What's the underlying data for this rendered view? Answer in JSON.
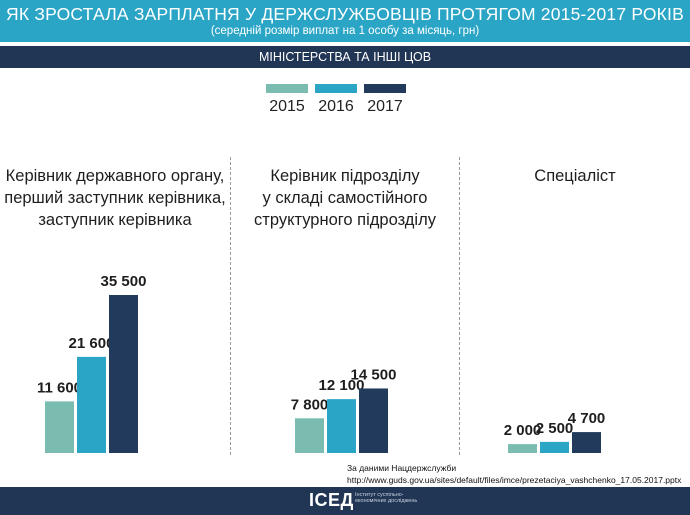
{
  "header": {
    "title": "ЯК ЗРОСТАЛА ЗАРПЛАТНЯ У ДЕРЖСЛУЖБОВЦІВ ПРОТЯГОМ 2015-2017 РОКІВ",
    "subtitle": "(середній розмір виплат на 1 особу за місяць, грн)"
  },
  "band": {
    "label": "МІНІСТЕРСТВА ТА ІНШІ ЦОВ"
  },
  "colors": {
    "header": "#2aa5c6",
    "band": "#213554",
    "y2015": "#7bbcb1",
    "y2016": "#2aa5c6",
    "y2017": "#223a5c"
  },
  "legend": [
    {
      "label": "2015",
      "color": "#7bbcb1"
    },
    {
      "label": "2016",
      "color": "#2aa5c6"
    },
    {
      "label": "2017",
      "color": "#223a5c"
    }
  ],
  "categories": {
    "c1": [
      "Керівник державного органу,",
      "перший заступник керівника,",
      "заступник керівника"
    ],
    "c2": [
      "Керівник підрозділу",
      "у складі самостійного",
      "структурного підрозділу"
    ],
    "c3": [
      "Спеціаліст"
    ]
  },
  "chart_data": {
    "type": "bar",
    "categories": [
      "Керівник державного органу, перший заступник керівника, заступник керівника",
      "Керівник підрозділу у складі самостійного структурного підрозділу",
      "Спеціаліст"
    ],
    "series": [
      {
        "name": "2015",
        "values": [
          11600,
          7800,
          2000
        ],
        "labels": [
          "11 600",
          "7 800",
          "2 000"
        ]
      },
      {
        "name": "2016",
        "values": [
          21600,
          12100,
          2500
        ],
        "labels": [
          "21 600",
          "12 100",
          "2 500"
        ]
      },
      {
        "name": "2017",
        "values": [
          35500,
          14500,
          4700
        ],
        "labels": [
          "35 500",
          "14 500",
          "4 700"
        ]
      }
    ],
    "title": "ЯК ЗРОСТАЛА ЗАРПЛАТНЯ У ДЕРЖСЛУЖБОВЦІВ ПРОТЯГОМ 2015-2017 РОКІВ",
    "ylim": [
      0,
      35500
    ],
    "grid": false,
    "legend_position": "top-center"
  },
  "source": {
    "line1": "За даними Нацдержслужби",
    "line2": "http://www.guds.gov.ua/sites/default/files/imce/prezetaciya_vashchenko_17.05.2017.pptx"
  },
  "footer": {
    "logo": "ІСЕД",
    "logo_text": "Інститут суспільно-економічних досліджень"
  }
}
